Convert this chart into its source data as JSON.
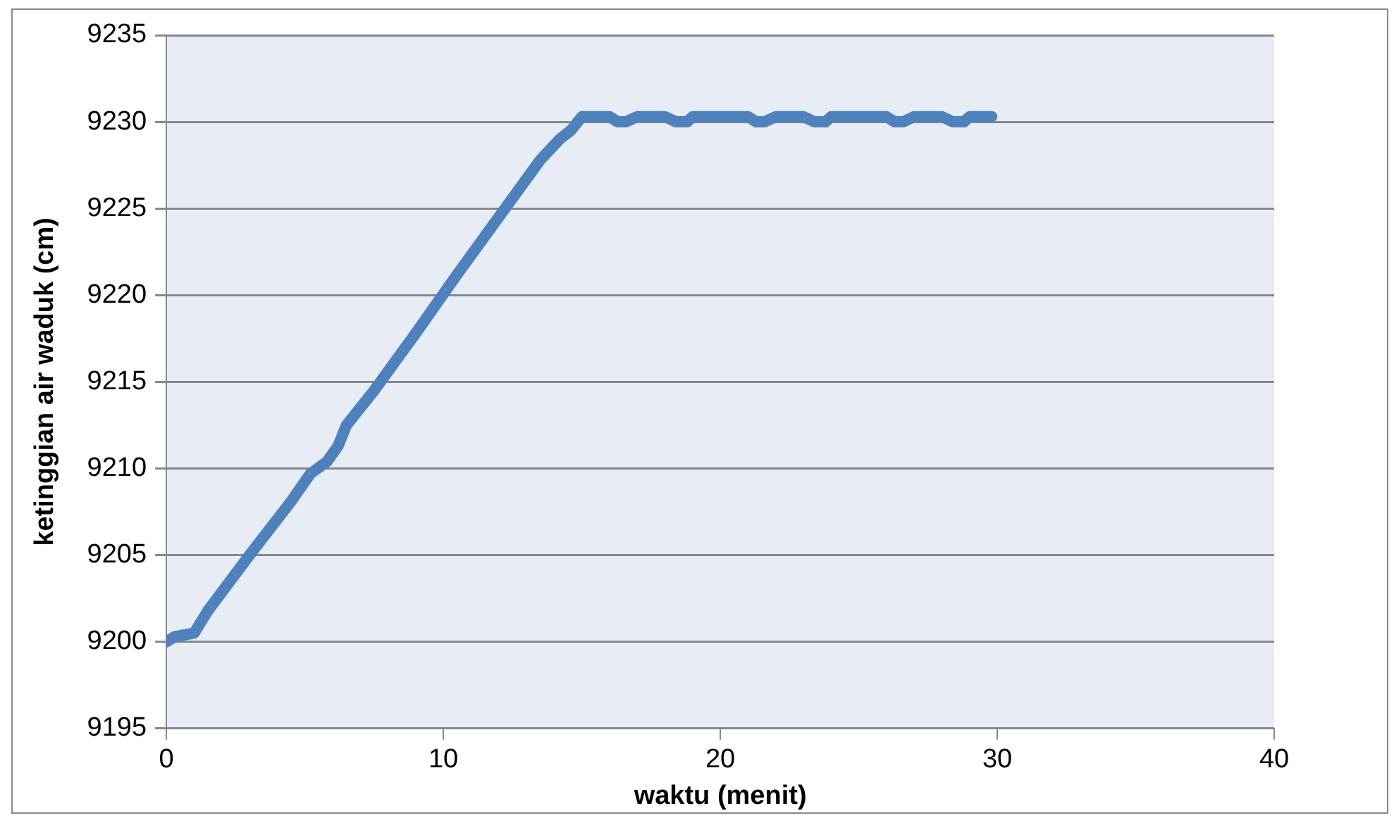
{
  "chart_data": {
    "type": "line",
    "xlabel": "waktu (menit)",
    "ylabel": "ketinggian air waduk (cm)",
    "x": [
      0,
      0.3,
      1,
      1.5,
      3,
      4.5,
      5.2,
      5.8,
      6.2,
      6.5,
      7.5,
      9,
      10.5,
      12,
      13.5,
      14.2,
      14.6,
      15,
      16,
      16.3,
      16.6,
      17,
      18,
      18.4,
      18.8,
      19,
      21,
      21.3,
      21.6,
      22,
      23,
      23.4,
      23.8,
      24,
      26,
      26.3,
      26.6,
      27,
      28,
      28.4,
      28.8,
      29,
      29.8
    ],
    "values": [
      9200,
      9200.3,
      9200.5,
      9201.8,
      9205,
      9208.1,
      9209.7,
      9210.4,
      9211.3,
      9212.5,
      9214.5,
      9217.8,
      9221.2,
      9224.5,
      9227.8,
      9229,
      9229.5,
      9230.3,
      9230.3,
      9230,
      9230,
      9230.3,
      9230.3,
      9230,
      9230,
      9230.3,
      9230.3,
      9230,
      9230,
      9230.3,
      9230.3,
      9230,
      9230,
      9230.3,
      9230.3,
      9230,
      9230,
      9230.3,
      9230.3,
      9230,
      9230,
      9230.3,
      9230.3
    ],
    "color": "#4f81bd",
    "xlim": [
      0,
      40
    ],
    "xticks": [
      0,
      10,
      20,
      30,
      40
    ],
    "ylim": [
      9195,
      9235
    ],
    "yticks": [
      9195,
      9200,
      9205,
      9210,
      9215,
      9220,
      9225,
      9230,
      9235
    ],
    "grid": "y",
    "marker": "none",
    "line_style": "solid",
    "legend": false
  }
}
